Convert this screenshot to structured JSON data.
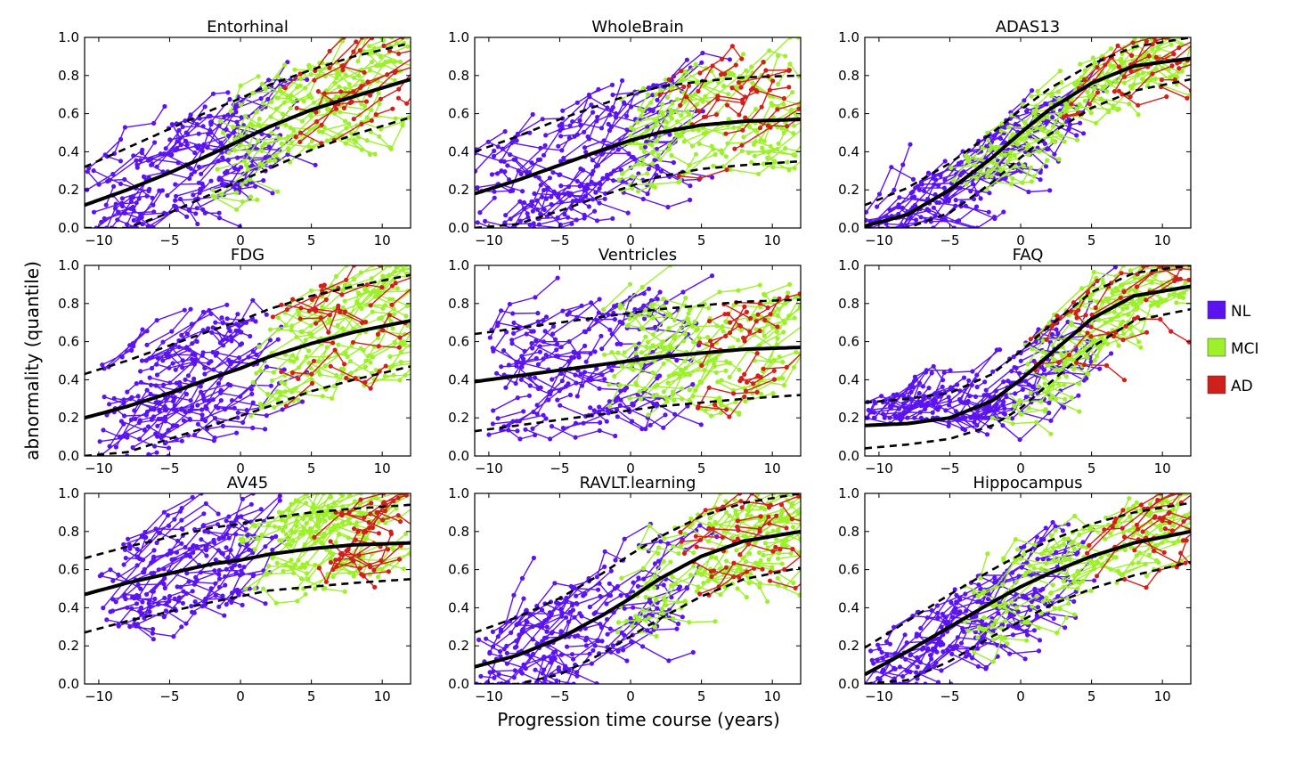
{
  "figure": {
    "ylabel": "abnormality (quantile)",
    "xlabel": "Progression time course (years)"
  },
  "legend": [
    {
      "label": "NL",
      "color": "#5b14f0"
    },
    {
      "label": "MCI",
      "color": "#9df02a"
    },
    {
      "label": "AD",
      "color": "#d0201c"
    }
  ],
  "chart_data": [
    {
      "type": "line",
      "title": "Entorhinal",
      "xlim": [
        -11,
        12
      ],
      "ylim": [
        0,
        1
      ],
      "xticks": [
        -10,
        -5,
        0,
        5,
        10
      ],
      "yticks": [
        0.0,
        0.2,
        0.4,
        0.6,
        0.8,
        1.0
      ],
      "mean_curve": {
        "x": [
          -11,
          -8,
          -5,
          -2,
          0,
          2,
          5,
          8,
          12
        ],
        "y": [
          0.12,
          0.2,
          0.29,
          0.39,
          0.46,
          0.53,
          0.62,
          0.69,
          0.78
        ]
      },
      "upper_band": {
        "x": [
          -11,
          -8,
          -5,
          -2,
          0,
          2,
          5,
          8,
          12
        ],
        "y": [
          0.32,
          0.42,
          0.52,
          0.62,
          0.68,
          0.75,
          0.83,
          0.9,
          0.97
        ]
      },
      "lower_band": {
        "x": [
          -11,
          -8,
          -5,
          -2,
          0,
          2,
          5,
          8,
          12
        ],
        "y": [
          0.0,
          0.0,
          0.08,
          0.18,
          0.25,
          0.31,
          0.41,
          0.49,
          0.58
        ]
      },
      "groups": [
        {
          "name": "NL",
          "x_range": [
            -11,
            1
          ],
          "y_range": [
            0.0,
            0.9
          ]
        },
        {
          "name": "MCI",
          "x_range": [
            -2,
            10
          ],
          "y_range": [
            0.0,
            1.0
          ]
        },
        {
          "name": "AD",
          "x_range": [
            3,
            11.5
          ],
          "y_range": [
            0.15,
            1.0
          ]
        }
      ]
    },
    {
      "type": "line",
      "title": "WholeBrain",
      "xlim": [
        -11,
        12
      ],
      "ylim": [
        0,
        1
      ],
      "xticks": [
        -10,
        -5,
        0,
        5,
        10
      ],
      "yticks": [
        0.0,
        0.2,
        0.4,
        0.6,
        0.8,
        1.0
      ],
      "mean_curve": {
        "x": [
          -11,
          -8,
          -5,
          -2,
          0,
          2,
          5,
          8,
          12
        ],
        "y": [
          0.18,
          0.25,
          0.33,
          0.41,
          0.46,
          0.5,
          0.54,
          0.56,
          0.57
        ]
      },
      "upper_band": {
        "x": [
          -11,
          -8,
          -5,
          -2,
          0,
          2,
          5,
          8,
          12
        ],
        "y": [
          0.4,
          0.48,
          0.57,
          0.65,
          0.7,
          0.74,
          0.77,
          0.79,
          0.8
        ]
      },
      "lower_band": {
        "x": [
          -11,
          -8,
          -5,
          -2,
          0,
          2,
          5,
          8,
          12
        ],
        "y": [
          0.0,
          0.02,
          0.09,
          0.17,
          0.22,
          0.27,
          0.31,
          0.33,
          0.35
        ]
      },
      "groups": [
        {
          "name": "NL",
          "x_range": [
            -11,
            2
          ],
          "y_range": [
            0.0,
            0.95
          ]
        },
        {
          "name": "MCI",
          "x_range": [
            -1,
            11
          ],
          "y_range": [
            0.05,
            1.0
          ]
        },
        {
          "name": "AD",
          "x_range": [
            2,
            10
          ],
          "y_range": [
            0.03,
            0.95
          ]
        }
      ]
    },
    {
      "type": "line",
      "title": "ADAS13",
      "xlim": [
        -11,
        12
      ],
      "ylim": [
        0,
        1
      ],
      "xticks": [
        -10,
        -5,
        0,
        5,
        10
      ],
      "yticks": [
        0.0,
        0.2,
        0.4,
        0.6,
        0.8,
        1.0
      ],
      "mean_curve": {
        "x": [
          -11,
          -8,
          -5,
          -2,
          0,
          2,
          5,
          8,
          12
        ],
        "y": [
          0.01,
          0.07,
          0.2,
          0.37,
          0.5,
          0.62,
          0.76,
          0.85,
          0.89
        ]
      },
      "upper_band": {
        "x": [
          -11,
          -8,
          -5,
          -2,
          0,
          2,
          5,
          8,
          12
        ],
        "y": [
          0.12,
          0.21,
          0.34,
          0.5,
          0.62,
          0.73,
          0.86,
          0.95,
          1.0
        ]
      },
      "lower_band": {
        "x": [
          -11,
          -8,
          -5,
          -2,
          0,
          2,
          5,
          8,
          12
        ],
        "y": [
          0.0,
          0.0,
          0.08,
          0.24,
          0.37,
          0.49,
          0.63,
          0.72,
          0.78
        ]
      },
      "groups": [
        {
          "name": "NL",
          "x_range": [
            -11,
            3
          ],
          "y_range": [
            0.0,
            0.65
          ]
        },
        {
          "name": "MCI",
          "x_range": [
            -5,
            10
          ],
          "y_range": [
            0.1,
            1.0
          ]
        },
        {
          "name": "AD",
          "x_range": [
            3,
            11.5
          ],
          "y_range": [
            0.5,
            1.0
          ]
        }
      ]
    },
    {
      "type": "line",
      "title": "FDG",
      "xlim": [
        -11,
        12
      ],
      "ylim": [
        0,
        1
      ],
      "xticks": [
        -10,
        -5,
        0,
        5,
        10
      ],
      "yticks": [
        0.0,
        0.2,
        0.4,
        0.6,
        0.8,
        1.0
      ],
      "mean_curve": {
        "x": [
          -11,
          -8,
          -5,
          -2,
          0,
          2,
          5,
          8,
          12
        ],
        "y": [
          0.2,
          0.26,
          0.33,
          0.41,
          0.46,
          0.52,
          0.59,
          0.65,
          0.71
        ]
      },
      "upper_band": {
        "x": [
          -11,
          -8,
          -5,
          -2,
          0,
          2,
          5,
          8,
          12
        ],
        "y": [
          0.43,
          0.5,
          0.58,
          0.66,
          0.71,
          0.77,
          0.84,
          0.89,
          0.95
        ]
      },
      "lower_band": {
        "x": [
          -11,
          -8,
          -5,
          -2,
          0,
          2,
          5,
          8,
          12
        ],
        "y": [
          0.0,
          0.02,
          0.09,
          0.16,
          0.21,
          0.26,
          0.34,
          0.4,
          0.47
        ]
      },
      "groups": [
        {
          "name": "NL",
          "x_range": [
            -10,
            0
          ],
          "y_range": [
            0.0,
            0.75
          ]
        },
        {
          "name": "MCI",
          "x_range": [
            0,
            12
          ],
          "y_range": [
            0.05,
            1.0
          ]
        },
        {
          "name": "AD",
          "x_range": [
            2,
            11
          ],
          "y_range": [
            0.05,
            1.0
          ]
        }
      ]
    },
    {
      "type": "line",
      "title": "Ventricles",
      "xlim": [
        -11,
        12
      ],
      "ylim": [
        0,
        1
      ],
      "xticks": [
        -10,
        -5,
        0,
        5,
        10
      ],
      "yticks": [
        0.0,
        0.2,
        0.4,
        0.6,
        0.8,
        1.0
      ],
      "mean_curve": {
        "x": [
          -11,
          -8,
          -5,
          -2,
          0,
          2,
          5,
          8,
          12
        ],
        "y": [
          0.39,
          0.42,
          0.45,
          0.48,
          0.5,
          0.52,
          0.54,
          0.56,
          0.57
        ]
      },
      "upper_band": {
        "x": [
          -11,
          -8,
          -5,
          -2,
          0,
          2,
          5,
          8,
          12
        ],
        "y": [
          0.64,
          0.67,
          0.7,
          0.73,
          0.75,
          0.77,
          0.79,
          0.81,
          0.82
        ]
      },
      "lower_band": {
        "x": [
          -11,
          -8,
          -5,
          -2,
          0,
          2,
          5,
          8,
          12
        ],
        "y": [
          0.13,
          0.16,
          0.19,
          0.22,
          0.24,
          0.26,
          0.28,
          0.3,
          0.32
        ]
      },
      "groups": [
        {
          "name": "NL",
          "x_range": [
            -10,
            1
          ],
          "y_range": [
            0.0,
            1.0
          ]
        },
        {
          "name": "MCI",
          "x_range": [
            -2,
            10
          ],
          "y_range": [
            0.0,
            1.0
          ]
        },
        {
          "name": "AD",
          "x_range": [
            4,
            10
          ],
          "y_range": [
            0.2,
            0.95
          ]
        }
      ]
    },
    {
      "type": "line",
      "title": "FAQ",
      "xlim": [
        -11,
        12
      ],
      "ylim": [
        0,
        1
      ],
      "xticks": [
        -10,
        -5,
        0,
        5,
        10
      ],
      "yticks": [
        0.0,
        0.2,
        0.4,
        0.6,
        0.8,
        1.0
      ],
      "mean_curve": {
        "x": [
          -11,
          -8,
          -5,
          -2,
          0,
          2,
          5,
          8,
          12
        ],
        "y": [
          0.16,
          0.17,
          0.2,
          0.29,
          0.4,
          0.53,
          0.72,
          0.84,
          0.89
        ]
      },
      "upper_band": {
        "x": [
          -11,
          -8,
          -5,
          -2,
          0,
          2,
          5,
          8,
          12
        ],
        "y": [
          0.28,
          0.3,
          0.33,
          0.43,
          0.55,
          0.68,
          0.86,
          0.96,
          1.0
        ]
      },
      "lower_band": {
        "x": [
          -11,
          -8,
          -5,
          -2,
          0,
          2,
          5,
          8,
          12
        ],
        "y": [
          0.04,
          0.06,
          0.09,
          0.16,
          0.25,
          0.38,
          0.57,
          0.71,
          0.77
        ]
      },
      "groups": [
        {
          "name": "NL",
          "x_range": [
            -11,
            3
          ],
          "y_range": [
            0.2,
            0.8
          ]
        },
        {
          "name": "MCI",
          "x_range": [
            -2,
            11
          ],
          "y_range": [
            0.2,
            1.0
          ]
        },
        {
          "name": "AD",
          "x_range": [
            0,
            11.5
          ],
          "y_range": [
            0.45,
            1.0
          ]
        }
      ]
    },
    {
      "type": "line",
      "title": "AV45",
      "xlim": [
        -11,
        12
      ],
      "ylim": [
        0,
        1
      ],
      "xticks": [
        -10,
        -5,
        0,
        5,
        10
      ],
      "yticks": [
        0.0,
        0.2,
        0.4,
        0.6,
        0.8,
        1.0
      ],
      "mean_curve": {
        "x": [
          -11,
          -8,
          -5,
          -2,
          0,
          2,
          5,
          8,
          12
        ],
        "y": [
          0.47,
          0.53,
          0.58,
          0.63,
          0.65,
          0.68,
          0.71,
          0.73,
          0.74
        ]
      },
      "upper_band": {
        "x": [
          -11,
          -8,
          -5,
          -2,
          0,
          2,
          5,
          8,
          12
        ],
        "y": [
          0.66,
          0.72,
          0.77,
          0.82,
          0.84,
          0.87,
          0.9,
          0.92,
          0.94
        ]
      },
      "lower_band": {
        "x": [
          -11,
          -8,
          -5,
          -2,
          0,
          2,
          5,
          8,
          12
        ],
        "y": [
          0.27,
          0.33,
          0.38,
          0.43,
          0.46,
          0.49,
          0.51,
          0.53,
          0.55
        ]
      },
      "groups": [
        {
          "name": "NL",
          "x_range": [
            -10,
            0
          ],
          "y_range": [
            0.05,
            1.0
          ]
        },
        {
          "name": "MCI",
          "x_range": [
            0,
            10
          ],
          "y_range": [
            0.5,
            1.0
          ]
        },
        {
          "name": "AD",
          "x_range": [
            5,
            10
          ],
          "y_range": [
            0.2,
            0.9
          ]
        }
      ]
    },
    {
      "type": "line",
      "title": "RAVLT.learning",
      "xlim": [
        -11,
        12
      ],
      "ylim": [
        0,
        1
      ],
      "xticks": [
        -10,
        -5,
        0,
        5,
        10
      ],
      "yticks": [
        0.0,
        0.2,
        0.4,
        0.6,
        0.8,
        1.0
      ],
      "mean_curve": {
        "x": [
          -11,
          -8,
          -5,
          -2,
          0,
          2,
          5,
          8,
          12
        ],
        "y": [
          0.09,
          0.15,
          0.24,
          0.36,
          0.45,
          0.55,
          0.67,
          0.75,
          0.8
        ]
      },
      "upper_band": {
        "x": [
          -11,
          -8,
          -5,
          -2,
          0,
          2,
          5,
          8,
          12
        ],
        "y": [
          0.27,
          0.35,
          0.45,
          0.58,
          0.68,
          0.77,
          0.88,
          0.95,
          1.0
        ]
      },
      "lower_band": {
        "x": [
          -11,
          -8,
          -5,
          -2,
          0,
          2,
          5,
          8,
          12
        ],
        "y": [
          0.0,
          0.0,
          0.05,
          0.16,
          0.25,
          0.34,
          0.46,
          0.55,
          0.61
        ]
      },
      "groups": [
        {
          "name": "NL",
          "x_range": [
            -11,
            2
          ],
          "y_range": [
            0.0,
            0.95
          ]
        },
        {
          "name": "MCI",
          "x_range": [
            -1,
            11.5
          ],
          "y_range": [
            0.0,
            1.0
          ]
        },
        {
          "name": "AD",
          "x_range": [
            1,
            11
          ],
          "y_range": [
            0.1,
            1.0
          ]
        }
      ]
    },
    {
      "type": "line",
      "title": "Hippocampus",
      "xlim": [
        -11,
        12
      ],
      "ylim": [
        0,
        1
      ],
      "xticks": [
        -10,
        -5,
        0,
        5,
        10
      ],
      "yticks": [
        0.0,
        0.2,
        0.4,
        0.6,
        0.8,
        1.0
      ],
      "mean_curve": {
        "x": [
          -11,
          -8,
          -5,
          -2,
          0,
          2,
          5,
          8,
          12
        ],
        "y": [
          0.05,
          0.17,
          0.3,
          0.43,
          0.51,
          0.58,
          0.67,
          0.74,
          0.8
        ]
      },
      "upper_band": {
        "x": [
          -11,
          -8,
          -5,
          -2,
          0,
          2,
          5,
          8,
          12
        ],
        "y": [
          0.19,
          0.33,
          0.47,
          0.6,
          0.68,
          0.75,
          0.84,
          0.9,
          0.95
        ]
      },
      "lower_band": {
        "x": [
          -11,
          -8,
          -5,
          -2,
          0,
          2,
          5,
          8,
          12
        ],
        "y": [
          0.0,
          0.02,
          0.12,
          0.25,
          0.33,
          0.41,
          0.5,
          0.57,
          0.64
        ]
      },
      "groups": [
        {
          "name": "NL",
          "x_range": [
            -11,
            2
          ],
          "y_range": [
            0.0,
            0.85
          ]
        },
        {
          "name": "MCI",
          "x_range": [
            -4,
            11
          ],
          "y_range": [
            0.05,
            1.0
          ]
        },
        {
          "name": "AD",
          "x_range": [
            3,
            11.5
          ],
          "y_range": [
            0.25,
            1.0
          ]
        }
      ]
    }
  ]
}
